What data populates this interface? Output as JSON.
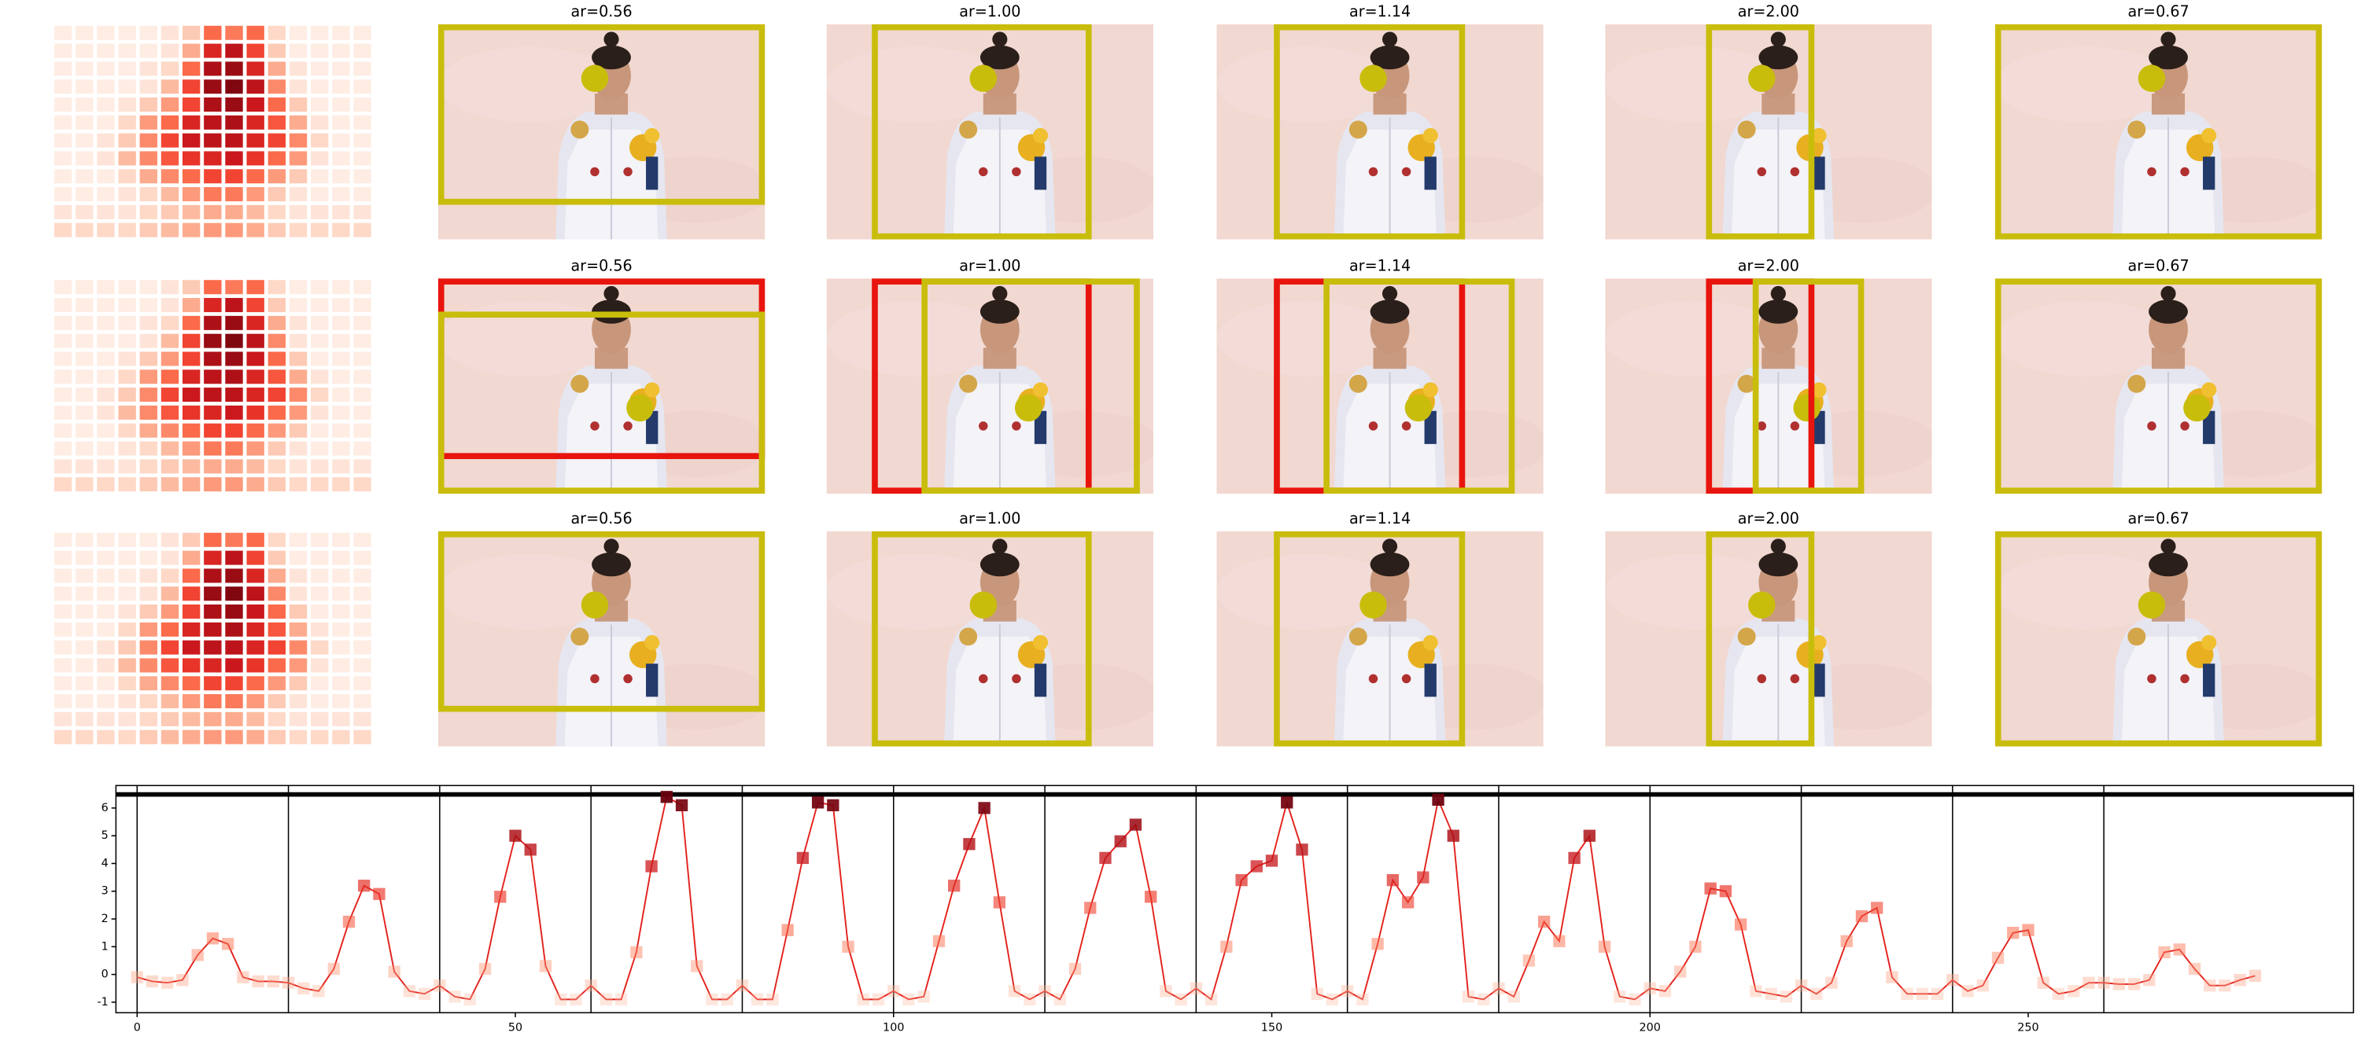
{
  "figure": {
    "rows": [
      {
        "titles": [
          "ar=0.56",
          "ar=1.00",
          "ar=1.14",
          "ar=2.00",
          "ar=0.67"
        ]
      },
      {
        "titles": [
          "ar=0.56",
          "ar=1.00",
          "ar=1.14",
          "ar=2.00",
          "ar=0.67"
        ]
      },
      {
        "titles": [
          "ar=0.56",
          "ar=1.00",
          "ar=1.14",
          "ar=2.00",
          "ar=0.67"
        ]
      }
    ],
    "heatmap": [
      [
        0.05,
        0.05,
        0.05,
        0.05,
        0.05,
        0.1,
        0.2,
        0.5,
        0.45,
        0.5,
        0.15,
        0.05,
        0.05,
        0.05,
        0.05
      ],
      [
        0.05,
        0.05,
        0.05,
        0.05,
        0.05,
        0.1,
        0.3,
        0.7,
        0.8,
        0.6,
        0.2,
        0.05,
        0.05,
        0.05,
        0.05
      ],
      [
        0.05,
        0.05,
        0.05,
        0.05,
        0.1,
        0.15,
        0.5,
        0.85,
        0.9,
        0.7,
        0.3,
        0.1,
        0.05,
        0.05,
        0.05
      ],
      [
        0.05,
        0.05,
        0.05,
        0.05,
        0.1,
        0.25,
        0.6,
        0.9,
        0.95,
        0.8,
        0.4,
        0.1,
        0.05,
        0.05,
        0.05
      ],
      [
        0.05,
        0.05,
        0.05,
        0.1,
        0.2,
        0.35,
        0.6,
        0.85,
        0.9,
        0.75,
        0.5,
        0.2,
        0.05,
        0.05,
        0.05
      ],
      [
        0.05,
        0.05,
        0.05,
        0.15,
        0.35,
        0.5,
        0.7,
        0.8,
        0.85,
        0.7,
        0.55,
        0.3,
        0.1,
        0.05,
        0.05
      ],
      [
        0.05,
        0.05,
        0.1,
        0.2,
        0.4,
        0.6,
        0.75,
        0.8,
        0.8,
        0.7,
        0.6,
        0.4,
        0.15,
        0.05,
        0.05
      ],
      [
        0.05,
        0.05,
        0.1,
        0.25,
        0.4,
        0.55,
        0.65,
        0.7,
        0.75,
        0.65,
        0.5,
        0.35,
        0.1,
        0.05,
        0.05
      ],
      [
        0.05,
        0.05,
        0.05,
        0.15,
        0.3,
        0.4,
        0.5,
        0.6,
        0.6,
        0.5,
        0.35,
        0.2,
        0.05,
        0.05,
        0.05
      ],
      [
        0.05,
        0.05,
        0.05,
        0.1,
        0.15,
        0.25,
        0.35,
        0.45,
        0.45,
        0.35,
        0.2,
        0.1,
        0.05,
        0.05,
        0.05
      ],
      [
        0.1,
        0.1,
        0.1,
        0.1,
        0.15,
        0.2,
        0.25,
        0.3,
        0.3,
        0.25,
        0.15,
        0.1,
        0.1,
        0.1,
        0.1
      ],
      [
        0.15,
        0.15,
        0.15,
        0.15,
        0.2,
        0.25,
        0.3,
        0.35,
        0.35,
        0.3,
        0.2,
        0.15,
        0.15,
        0.15,
        0.15
      ]
    ]
  },
  "chart_data": {
    "type": "line",
    "marker": "square",
    "x": [
      0,
      2,
      4,
      6,
      8,
      10,
      12,
      14,
      16,
      18,
      20,
      22,
      24,
      26,
      28,
      30,
      32,
      34,
      36,
      38,
      40,
      42,
      44,
      46,
      48,
      50,
      52,
      54,
      56,
      58,
      60,
      62,
      64,
      66,
      68,
      70,
      72,
      74,
      76,
      78,
      80,
      82,
      84,
      86,
      88,
      90,
      92,
      94,
      96,
      98,
      100,
      102,
      104,
      106,
      108,
      110,
      112,
      114,
      116,
      118,
      120,
      122,
      124,
      126,
      128,
      130,
      132,
      134,
      136,
      138,
      140,
      142,
      144,
      146,
      148,
      150,
      152,
      154,
      156,
      158,
      160,
      162,
      164,
      166,
      168,
      170,
      172,
      174,
      176,
      178,
      180,
      182,
      184,
      186,
      188,
      190,
      192,
      194,
      196,
      198,
      200,
      202,
      204,
      206,
      208,
      210,
      212,
      214,
      216,
      218,
      220,
      222,
      224,
      226,
      228,
      230,
      232,
      234,
      236,
      238,
      240,
      242,
      244,
      246,
      248,
      250,
      252,
      254,
      256,
      258,
      260,
      262,
      264,
      266,
      268,
      270,
      272,
      274,
      276,
      278,
      280
    ],
    "series": [
      {
        "color": "#e3211c",
        "values": [
          -0.1,
          -0.25,
          -0.3,
          -0.2,
          0.7,
          1.3,
          1.1,
          -0.1,
          -0.25,
          -0.25,
          -0.3,
          -0.5,
          -0.6,
          0.2,
          1.9,
          3.2,
          2.9,
          0.1,
          -0.6,
          -0.7,
          -0.4,
          -0.8,
          -0.9,
          0.2,
          2.8,
          5.0,
          4.5,
          0.3,
          -0.9,
          -0.9,
          -0.4,
          -0.9,
          -0.9,
          0.8,
          3.9,
          6.4,
          6.1,
          0.3,
          -0.9,
          -0.9,
          -0.4,
          -0.9,
          -0.9,
          1.6,
          4.2,
          6.2,
          6.1,
          1.0,
          -0.9,
          -0.9,
          -0.6,
          -0.9,
          -0.8,
          1.2,
          3.2,
          4.7,
          6.0,
          2.6,
          -0.6,
          -0.9,
          -0.6,
          -0.9,
          0.2,
          2.4,
          4.2,
          4.8,
          5.4,
          2.8,
          -0.6,
          -0.9,
          -0.5,
          -0.9,
          1.0,
          3.4,
          3.9,
          4.1,
          6.2,
          4.5,
          -0.7,
          -0.9,
          -0.6,
          -0.9,
          1.1,
          3.4,
          2.6,
          3.5,
          6.3,
          5.0,
          -0.8,
          -0.9,
          -0.5,
          -0.8,
          0.5,
          1.9,
          1.2,
          4.2,
          5.0,
          1.0,
          -0.8,
          -0.9,
          -0.5,
          -0.6,
          0.1,
          1.0,
          3.1,
          3.0,
          1.8,
          -0.6,
          -0.7,
          -0.8,
          -0.4,
          -0.7,
          -0.3,
          1.2,
          2.1,
          2.4,
          -0.1,
          -0.7,
          -0.7,
          -0.7,
          -0.2,
          -0.6,
          -0.4,
          0.6,
          1.5,
          1.6,
          -0.3,
          -0.7,
          -0.6,
          -0.3,
          -0.3,
          -0.35,
          -0.35,
          -0.2,
          0.8,
          0.9,
          0.2,
          -0.4,
          -0.4,
          -0.2,
          -0.05
        ]
      }
    ],
    "xlim": [
      -2.8,
      293
    ],
    "ylim": [
      -1.38,
      6.81
    ],
    "xticks": [
      0,
      50,
      100,
      150,
      200,
      250
    ],
    "yticks": [
      -1,
      0,
      1,
      2,
      3,
      4,
      5,
      6
    ],
    "vlines": [
      0,
      20,
      40,
      60,
      80,
      100,
      120,
      140,
      160,
      180,
      200,
      220,
      240,
      260
    ],
    "hline": 6.49
  }
}
